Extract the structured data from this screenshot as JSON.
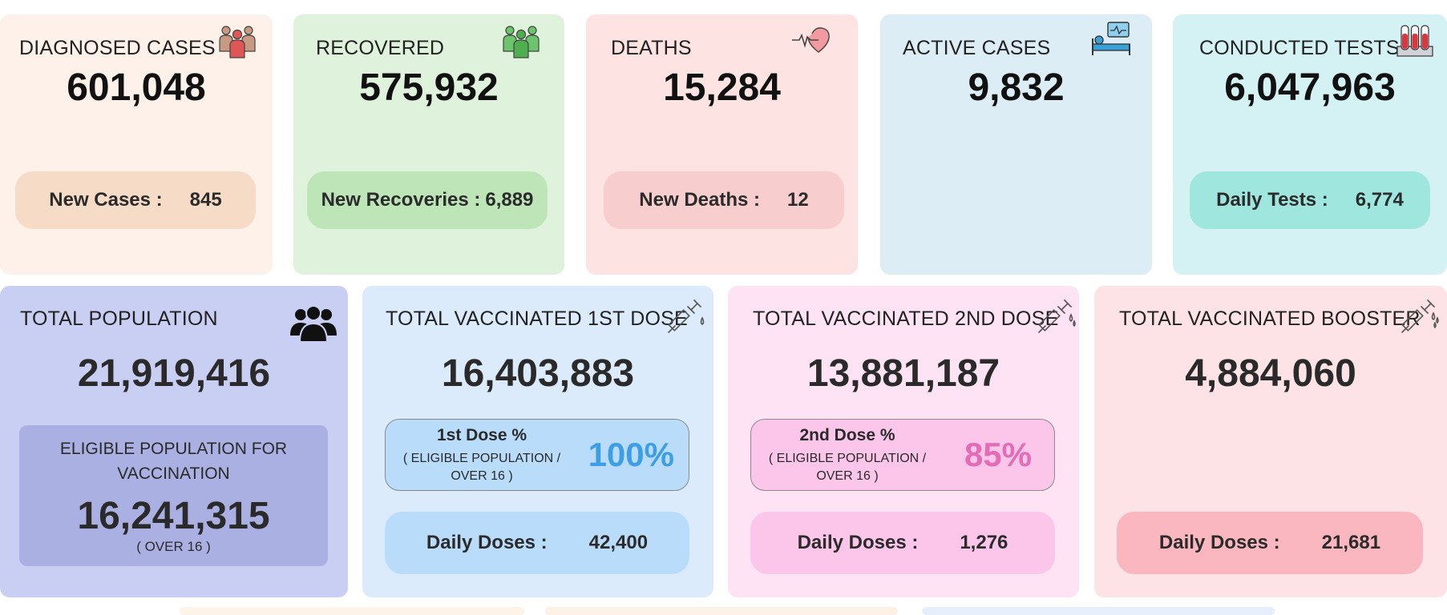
{
  "summary_cards": [
    {
      "title": "DIAGNOSED CASES",
      "value": "601,048",
      "pill_label": "New Cases :",
      "pill_value": "845",
      "icon": "people-group-icon"
    },
    {
      "title": "RECOVERED",
      "value": "575,932",
      "pill_label": "New Recoveries :",
      "pill_value": "6,889",
      "icon": "recovered-people-icon"
    },
    {
      "title": "DEATHS",
      "value": "15,284",
      "pill_label": "New Deaths :",
      "pill_value": "12",
      "icon": "heartbeat-icon"
    },
    {
      "title": "ACTIVE CASES",
      "value": "9,832",
      "icon": "hospital-bed-icon"
    },
    {
      "title": "CONDUCTED TESTS",
      "value": "6,047,963",
      "pill_label": "Daily Tests :",
      "pill_value": "6,774",
      "icon": "test-tubes-icon"
    }
  ],
  "population": {
    "title": "TOTAL POPULATION",
    "value": "21,919,416",
    "eligible_title_line1": "ELIGIBLE POPULATION FOR",
    "eligible_title_line2": "VACCINATION",
    "eligible_value": "16,241,315",
    "eligible_note": "( OVER 16 )",
    "icon": "population-icon"
  },
  "vaccination": {
    "dose1": {
      "title": "TOTAL VACCINATED 1ST DOSE",
      "value": "16,403,883",
      "pct_heading": "1st Dose %",
      "pct_note_line1": "( ELIGIBLE POPULATION /",
      "pct_note_line2": "OVER 16 )",
      "pct_value": "100%",
      "daily_label": "Daily Doses :",
      "daily_value": "42,400",
      "icon": "syringe-icon"
    },
    "dose2": {
      "title": "TOTAL VACCINATED 2ND DOSE",
      "value": "13,881,187",
      "pct_heading": "2nd Dose %",
      "pct_note_line1": "( ELIGIBLE POPULATION /",
      "pct_note_line2": "OVER 16 )",
      "pct_value": "85%",
      "daily_label": "Daily Doses :",
      "daily_value": "1,276",
      "icon": "syringe-icon"
    },
    "booster": {
      "title": "TOTAL VACCINATED BOOSTER",
      "value": "4,884,060",
      "daily_label": "Daily Doses :",
      "daily_value": "21,681",
      "icon": "syringe-icon"
    }
  },
  "colors": {
    "dose1_pct": "#3d9ee6",
    "dose2_pct": "#e46bb5"
  }
}
